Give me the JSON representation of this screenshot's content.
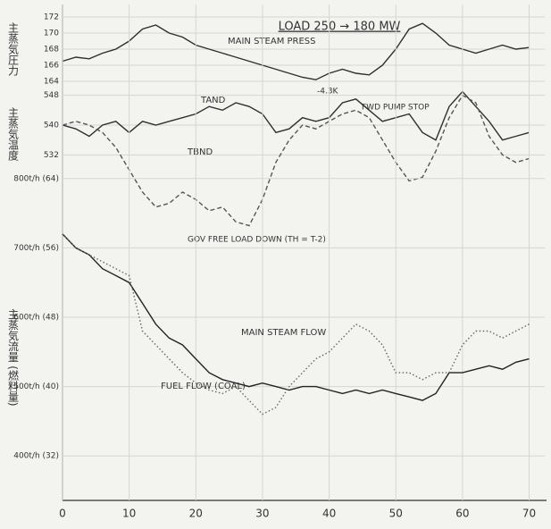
{
  "chart_data": [
    {
      "type": "line",
      "title": "LOAD 250 → 180 MW",
      "y_label": "主蒸気圧力",
      "x": [
        0,
        2,
        4,
        6,
        8,
        10,
        12,
        14,
        16,
        18,
        20,
        22,
        24,
        26,
        28,
        30,
        32,
        34,
        36,
        38,
        40,
        42,
        44,
        46,
        48,
        50,
        52,
        54,
        56,
        58,
        60,
        62,
        64,
        66,
        68,
        70
      ],
      "xlim": [
        0,
        71
      ],
      "ylim": [
        163,
        173
      ],
      "yticks": [
        164,
        166,
        168,
        170,
        172
      ],
      "grid": true,
      "series": [
        {
          "name": "MAIN STEAM PRESS",
          "color": "#2f2f2f",
          "style": "solid",
          "values": [
            166.5,
            167,
            166.8,
            167.5,
            168,
            169,
            170.5,
            171,
            170,
            169.5,
            168.5,
            168,
            167.5,
            167,
            166.5,
            166,
            165.5,
            165,
            164.5,
            164.2,
            165,
            165.5,
            165,
            164.8,
            166,
            168,
            170.5,
            171.2,
            170,
            168.5,
            168,
            167.5,
            168,
            168.5,
            168,
            168.2
          ]
        }
      ],
      "annotations": [
        "-4.3K",
        "FWD PUMP STOP"
      ]
    },
    {
      "type": "line",
      "y_label": "主蒸気温度",
      "x": [
        0,
        2,
        4,
        6,
        8,
        10,
        12,
        14,
        16,
        18,
        20,
        22,
        24,
        26,
        28,
        30,
        32,
        34,
        36,
        38,
        40,
        42,
        44,
        46,
        48,
        50,
        52,
        54,
        56,
        58,
        60,
        62,
        64,
        66,
        68,
        70
      ],
      "xlim": [
        0,
        71
      ],
      "ylim": [
        510,
        552
      ],
      "yticks": [
        532,
        540,
        548
      ],
      "grid": true,
      "series": [
        {
          "name": "TAND",
          "color": "#2f2f2f",
          "style": "solid",
          "values": [
            540,
            539,
            537,
            540,
            541,
            538,
            541,
            540,
            541,
            542,
            543,
            545,
            544,
            546,
            545,
            543,
            538,
            539,
            542,
            541,
            542,
            546,
            547,
            544,
            541,
            542,
            543,
            538,
            536,
            545,
            549,
            545,
            541,
            536,
            537,
            538
          ]
        },
        {
          "name": "TBND",
          "color": "#555555",
          "style": "dashed",
          "values": [
            540,
            541,
            540,
            538,
            534,
            528,
            522,
            518,
            519,
            522,
            520,
            517,
            518,
            514,
            513,
            520,
            530,
            536,
            540,
            539,
            541,
            543,
            544,
            542,
            536,
            530,
            525,
            526,
            533,
            542,
            548,
            546,
            537,
            532,
            530,
            531
          ]
        }
      ],
      "annotations": [
        "GOV FREE LOAD DOWN (TH = T-2)"
      ]
    },
    {
      "type": "line",
      "y_label": "主蒸気流量 (燃料量)",
      "x": [
        0,
        2,
        4,
        6,
        8,
        10,
        12,
        14,
        16,
        18,
        20,
        22,
        24,
        26,
        28,
        30,
        32,
        34,
        36,
        38,
        40,
        42,
        44,
        46,
        48,
        50,
        52,
        54,
        56,
        58,
        60,
        62,
        64,
        66,
        68,
        70
      ],
      "xlim": [
        0,
        71
      ],
      "ylim": [
        350,
        850
      ],
      "xticks": [
        0,
        10,
        20,
        30,
        40,
        50,
        60,
        70
      ],
      "yticks": [
        {
          "value": 400,
          "label": "400t/h (32)"
        },
        {
          "value": 500,
          "label": "500t/h (40)"
        },
        {
          "value": 600,
          "label": "600t/h (48)"
        },
        {
          "value": 700,
          "label": "700t/h (56)"
        },
        {
          "value": 800,
          "label": "800t/h (64)"
        }
      ],
      "grid": true,
      "series": [
        {
          "name": "MAIN STEAM FLOW",
          "color": "#222222",
          "style": "solid",
          "values": [
            720,
            700,
            690,
            670,
            660,
            650,
            620,
            590,
            570,
            560,
            540,
            520,
            510,
            505,
            500,
            505,
            500,
            495,
            500,
            500,
            495,
            490,
            495,
            490,
            495,
            490,
            485,
            480,
            490,
            520,
            520,
            525,
            530,
            525,
            535,
            540
          ]
        },
        {
          "name": "FUEL FLOW (COAL)",
          "color": "#666666",
          "style": "dotted",
          "values": [
            720,
            700,
            690,
            680,
            670,
            660,
            580,
            560,
            540,
            520,
            505,
            495,
            490,
            500,
            480,
            460,
            470,
            500,
            520,
            540,
            550,
            570,
            590,
            580,
            560,
            520,
            520,
            510,
            520,
            520,
            560,
            580,
            580,
            570,
            580,
            590
          ]
        }
      ]
    }
  ]
}
